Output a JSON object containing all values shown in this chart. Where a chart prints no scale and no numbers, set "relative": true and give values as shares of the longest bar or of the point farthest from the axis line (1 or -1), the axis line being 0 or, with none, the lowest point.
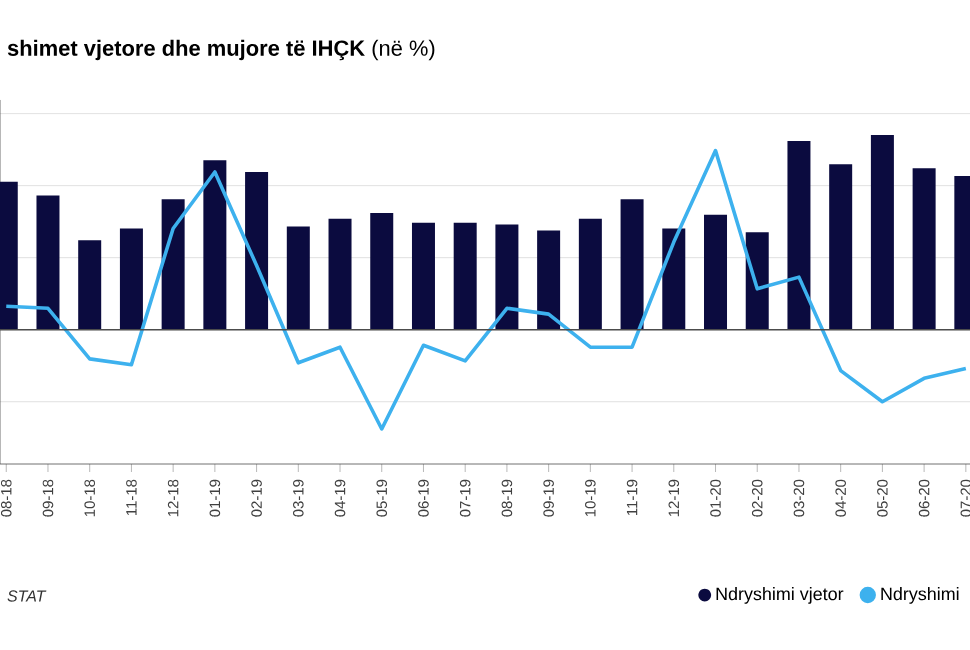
{
  "chart_data": {
    "type": "bar",
    "title": "**shimet vjetore dhe mujore të IHÇK** (në %)",
    "categories": [
      "08-18",
      "09-18",
      "10-18",
      "11-18",
      "12-18",
      "01-19",
      "02-19",
      "03-19",
      "04-19",
      "05-19",
      "06-19",
      "07-19",
      "08-19",
      "09-19",
      "10-19",
      "11-19",
      "12-19",
      "01-20",
      "02-20",
      "03-20",
      "04-20",
      "05-20",
      "06-20",
      "07-20"
    ],
    "relative": true,
    "series": [
      {
        "name": "Ndryshimi vjetor",
        "color": "#0b0b3f",
        "values": [
          0.76,
          0.69,
          0.46,
          0.52,
          0.67,
          0.87,
          0.81,
          0.53,
          0.57,
          0.6,
          0.55,
          0.55,
          0.54,
          0.51,
          0.57,
          0.67,
          0.52,
          0.59,
          0.5,
          0.97,
          0.85,
          1.0,
          0.83,
          0.79
        ]
      },
      {
        "name": "Ndryshimi",
        "type": "line",
        "color": "#3db1ee",
        "values": [
          0.12,
          0.11,
          -0.15,
          -0.18,
          0.52,
          0.81,
          0.33,
          -0.17,
          -0.09,
          -0.51,
          -0.08,
          -0.16,
          0.11,
          0.08,
          -0.09,
          -0.09,
          0.45,
          0.92,
          0.21,
          0.27,
          -0.21,
          -0.37,
          -0.25,
          -0.2
        ]
      }
    ],
    "annotations": [
      "STAT"
    ],
    "grid": "y",
    "legend": "bottom right",
    "marker": "none"
  }
}
